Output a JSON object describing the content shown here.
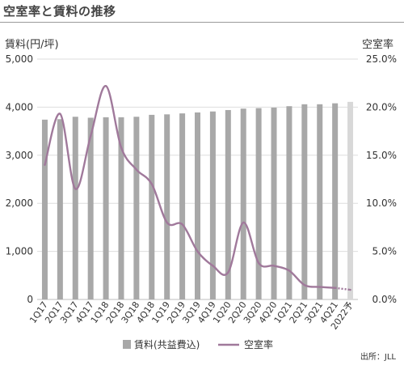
{
  "header": {
    "title": "空室率と賃料の推移"
  },
  "source": "出所：JLL",
  "colors": {
    "bar": "#a8a8a8",
    "bar_forecast": "#d8d8d8",
    "line": "#a0799b",
    "grid": "#dedede"
  },
  "chart_data": {
    "type": "bar+line",
    "categories": [
      "1Q17",
      "2Q17",
      "3Q17",
      "4Q17",
      "1Q18",
      "2Q18",
      "3Q18",
      "4Q18",
      "1Q19",
      "2Q19",
      "3Q19",
      "4Q19",
      "1Q20",
      "2Q20",
      "3Q20",
      "4Q20",
      "1Q21",
      "2Q21",
      "3Q21",
      "4Q21",
      "2022予"
    ],
    "y_left": {
      "label": "賃料(円/坪)",
      "ylim": [
        0,
        5000
      ],
      "ticks": [
        "0",
        "1,000",
        "2,000",
        "3,000",
        "4,000",
        "5,000"
      ],
      "tick_values": [
        0,
        1000,
        2000,
        3000,
        4000,
        5000
      ]
    },
    "y_right": {
      "label": "空室率",
      "ylim": [
        0,
        25
      ],
      "ticks": [
        "0.0%",
        "5.0%",
        "10.0%",
        "15.0%",
        "20.0%",
        "25.0%"
      ],
      "tick_values": [
        0,
        5,
        10,
        15,
        20,
        25
      ]
    },
    "series": [
      {
        "name": "賃料(共益費込)",
        "type": "bar",
        "axis": "left",
        "values": [
          3740,
          3750,
          3800,
          3780,
          3790,
          3790,
          3800,
          3840,
          3850,
          3870,
          3890,
          3910,
          3940,
          3970,
          3980,
          3990,
          4020,
          4060,
          4060,
          4080,
          4110
        ],
        "forecast_index": 20
      },
      {
        "name": "空室率",
        "type": "line",
        "axis": "right",
        "values": [
          14.0,
          19.3,
          11.5,
          17.0,
          22.2,
          15.8,
          13.5,
          12.0,
          8.0,
          7.8,
          5.0,
          3.5,
          2.8,
          8.0,
          3.8,
          3.5,
          3.0,
          1.5,
          1.3,
          1.2,
          1.0
        ],
        "forecast_from": 19
      }
    ],
    "legend": {
      "placement": "bottom-center",
      "entries": [
        "賃料(共益費込)",
        "空室率"
      ]
    }
  }
}
